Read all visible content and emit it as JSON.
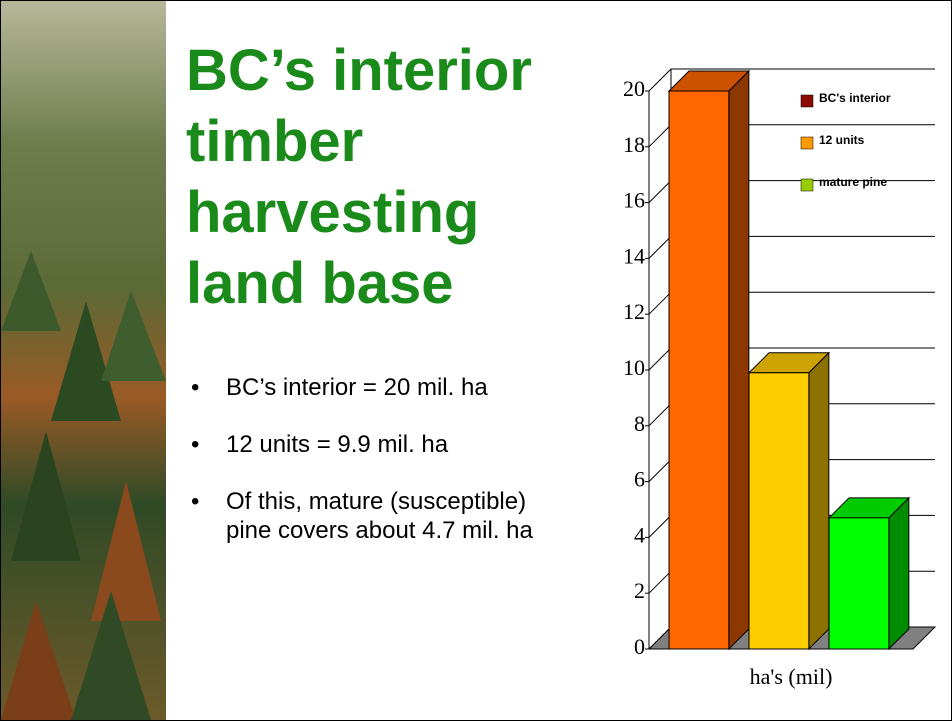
{
  "slide": {
    "title_lines": [
      "BC’s interior",
      "timber",
      "harvesting",
      "land base"
    ],
    "bullets": [
      "BC’s interior = 20 mil. ha",
      "12 units = 9.9 mil. ha",
      "Of this, mature (susceptible) pine covers about 4.7 mil. ha"
    ]
  },
  "chart_data": {
    "type": "bar3d",
    "categories": [
      "ha's (mil)"
    ],
    "series": [
      {
        "name": "BC's interior",
        "color": "#ff6600",
        "legend_color": "#8b0a00",
        "values": [
          20
        ]
      },
      {
        "name": "12 units",
        "color": "#ffcc00",
        "legend_color": "#ff9900",
        "values": [
          9.9
        ]
      },
      {
        "name": "mature pine",
        "color": "#00ff00",
        "legend_color": "#99cc00",
        "values": [
          4.7
        ]
      }
    ],
    "ylim": [
      0,
      20
    ],
    "yticks": [
      0,
      2,
      4,
      6,
      8,
      10,
      12,
      14,
      16,
      18,
      20
    ],
    "grid": true,
    "legend": "top-right"
  }
}
